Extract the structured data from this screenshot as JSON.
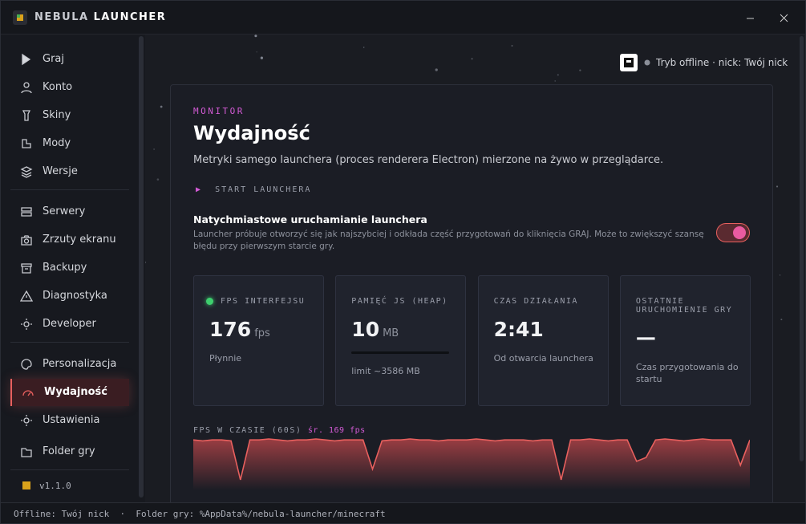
{
  "window": {
    "title_a": "NEBULA",
    "title_b": "LAUNCHER"
  },
  "sidebar": {
    "items": [
      "Graj",
      "Konto",
      "Skiny",
      "Mody",
      "Wersje",
      "Serwery",
      "Zrzuty ekranu",
      "Backupy",
      "Diagnostyka",
      "Developer",
      "Personalizacja",
      "Wydajność",
      "Ustawienia",
      "Folder gry"
    ],
    "version": "v1.1.0"
  },
  "header": {
    "status": "Tryb offline · nick: Twój nick"
  },
  "page": {
    "eyebrow": "MONITOR",
    "title": "Wydajność",
    "description": "Metryki samego launchera (proces renderera Electron) mierzone na żywo w przeglądarce.",
    "section": "START LAUNCHERA",
    "toggle": {
      "label": "Natychmiastowe uruchamianie launchera",
      "help": "Launcher próbuje otworzyć się jak najszybciej i odkłada część przygotowań do kliknięcia GRAJ. Może to zwiększyć szansę błędu przy pierwszym starcie gry.",
      "on": true
    }
  },
  "metrics": [
    {
      "label": "FPS INTERFEJSU",
      "value": 176,
      "unit": "fps",
      "note": "Płynnie"
    },
    {
      "label": "PAMIĘĆ JS (HEAP)",
      "value": 10,
      "unit": "MB",
      "note": "limit ~3586 MB"
    },
    {
      "label": "CZAS DZIAŁANIA",
      "value": "2:41",
      "note": "Od otwarcia launchera"
    },
    {
      "label": "OSTATNIE URUCHOMIENIE GRY",
      "value": "—",
      "note": "Czas przygotowania do startu"
    }
  ],
  "fps_chart": {
    "type": "line",
    "label": "FPS W CZASIE (60S)",
    "average": "śr. 169 fps",
    "color": "#e8605e",
    "values": [
      171,
      170,
      171,
      171,
      170,
      130,
      171,
      171,
      172,
      171,
      170,
      171,
      171,
      172,
      171,
      170,
      171,
      171,
      171,
      141,
      170,
      171,
      171,
      172,
      171,
      171,
      170,
      171,
      171,
      171,
      172,
      171,
      170,
      171,
      171,
      171,
      170,
      171,
      171,
      130,
      171,
      171,
      172,
      171,
      170,
      171,
      171,
      149,
      153,
      171,
      172,
      171,
      170,
      171,
      172,
      171,
      171,
      171,
      145,
      171
    ]
  },
  "statusbar": [
    "Offline: Twój nick",
    "Folder gry: %AppData%/nebula-launcher/minecraft"
  ]
}
